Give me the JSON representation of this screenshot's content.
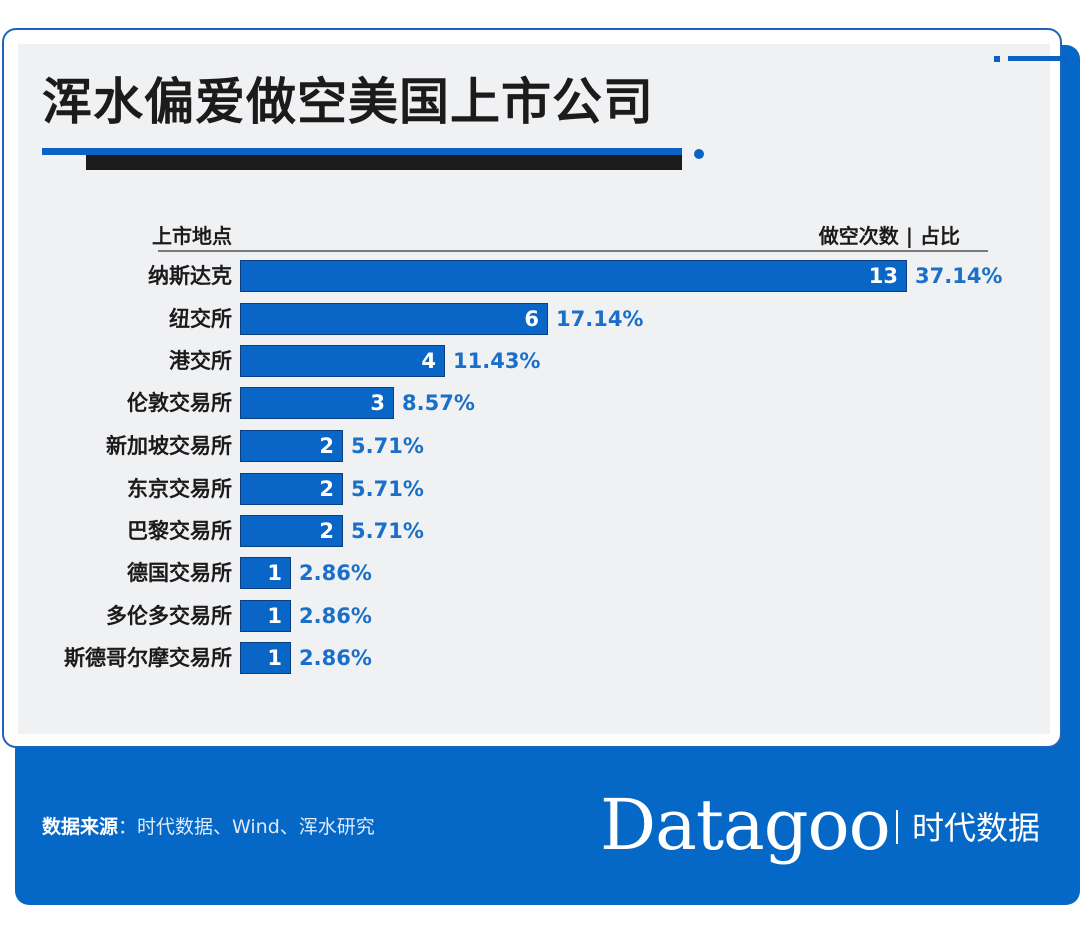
{
  "title": "浑水偏爱做空美国上市公司",
  "header": {
    "left": "上市地点",
    "right": "做空次数 | 占比"
  },
  "rows": [
    {
      "label": "纳斯达克",
      "value": "13",
      "pct": "37.14%"
    },
    {
      "label": "纽交所",
      "value": "6",
      "pct": "17.14%"
    },
    {
      "label": "港交所",
      "value": "4",
      "pct": "11.43%"
    },
    {
      "label": "伦敦交易所",
      "value": "3",
      "pct": "8.57%"
    },
    {
      "label": "新加坡交易所",
      "value": "2",
      "pct": "5.71%"
    },
    {
      "label": "东京交易所",
      "value": "2",
      "pct": "5.71%"
    },
    {
      "label": "巴黎交易所",
      "value": "2",
      "pct": "5.71%"
    },
    {
      "label": "德国交易所",
      "value": "1",
      "pct": "2.86%"
    },
    {
      "label": "多伦多交易所",
      "value": "1",
      "pct": "2.86%"
    },
    {
      "label": "斯德哥尔摩交易所",
      "value": "1",
      "pct": "2.86%"
    }
  ],
  "footer": {
    "source_label": "数据来源",
    "source_sep": "：",
    "source_text": "时代数据、Wind、浑水研究",
    "logo_en": "Datagoo",
    "logo_cn": "时代数据"
  },
  "colors": {
    "bar": "#0a66c6",
    "pct_text": "#1a6fc9",
    "footer_bg": "#0568c6",
    "title_text": "#1c1a1a"
  },
  "chart_data": {
    "type": "bar",
    "orientation": "horizontal",
    "title": "浑水偏爱做空美国上市公司",
    "xlabel": "做空次数 | 占比",
    "ylabel": "上市地点",
    "categories": [
      "纳斯达克",
      "纽交所",
      "港交所",
      "伦敦交易所",
      "新加坡交易所",
      "东京交易所",
      "巴黎交易所",
      "德国交易所",
      "多伦多交易所",
      "斯德哥尔摩交易所"
    ],
    "values": [
      13,
      6,
      4,
      3,
      2,
      2,
      2,
      1,
      1,
      1
    ],
    "percentages": [
      37.14,
      17.14,
      11.43,
      8.57,
      5.71,
      5.71,
      5.71,
      2.86,
      2.86,
      2.86
    ],
    "grid": false,
    "legend": "none",
    "source": "时代数据、Wind、浑水研究"
  }
}
